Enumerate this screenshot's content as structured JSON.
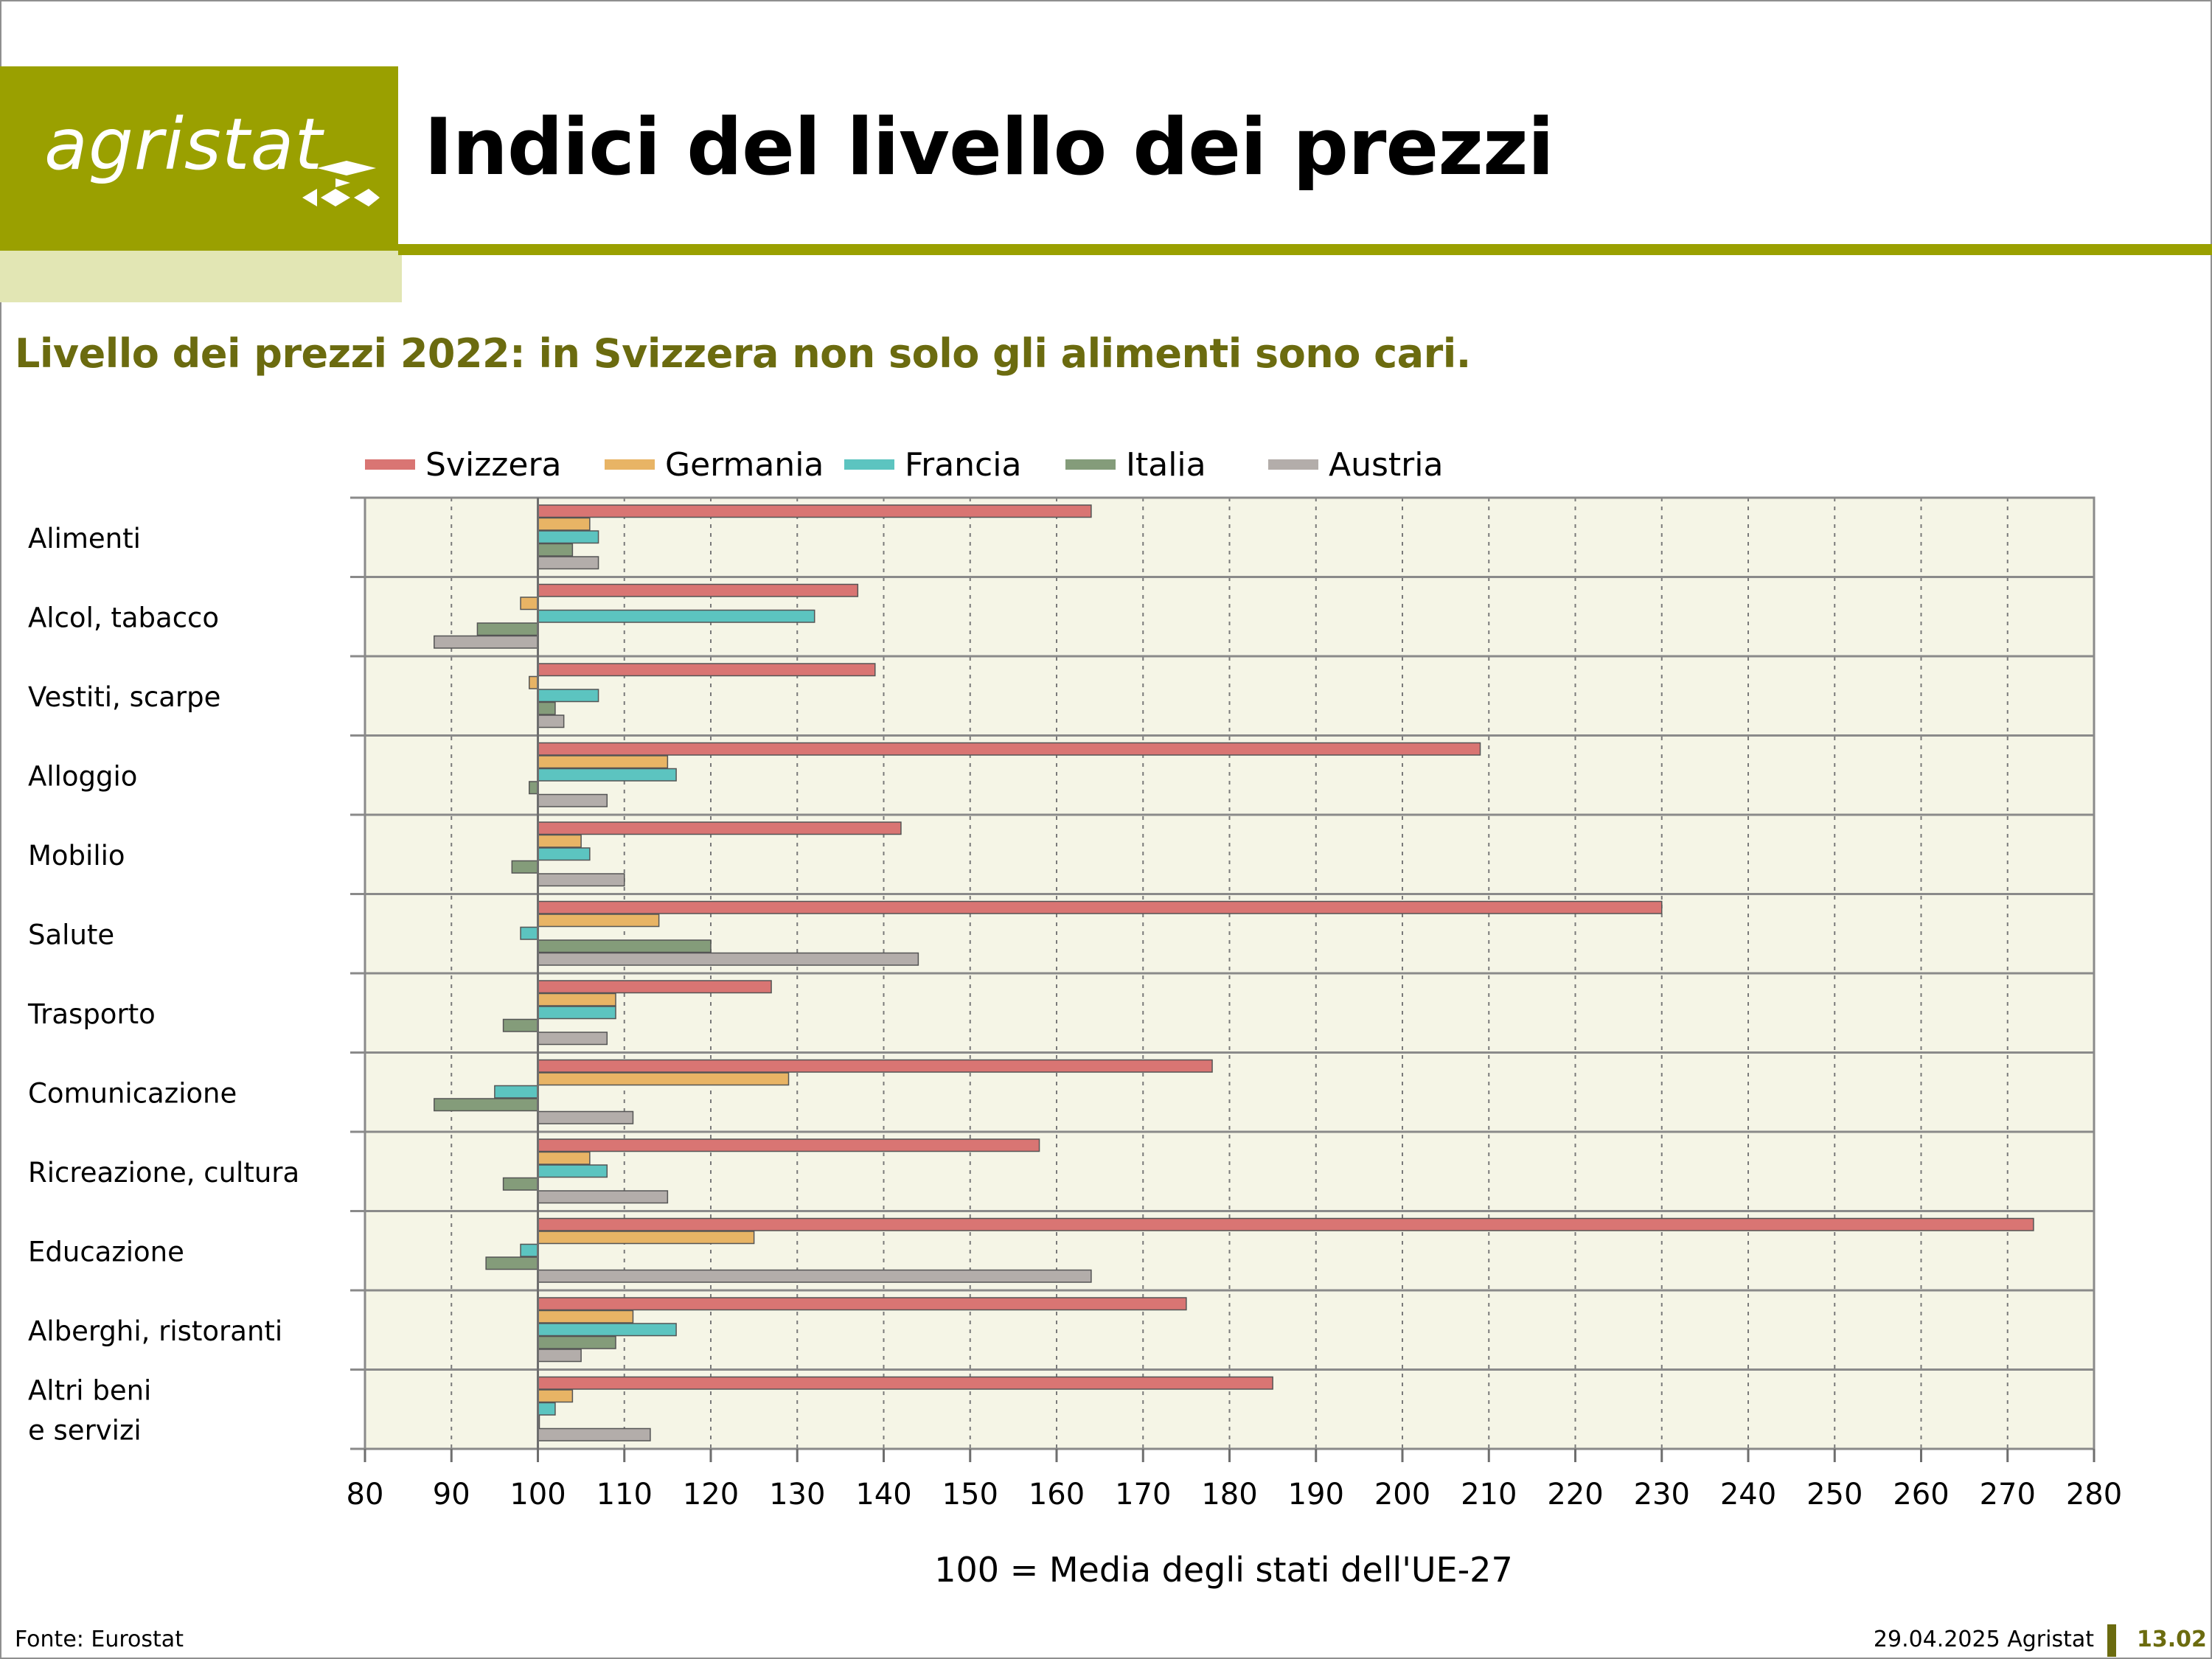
{
  "header": {
    "logo_text": "agristat",
    "title": "Indici del livello dei prezzi",
    "subtitle": "Livello dei prezzi 2022: in Svizzera non solo gli alimenti sono cari."
  },
  "footer": {
    "source": "Fonte: Eurostat",
    "date": "29.04.2025 Agristat",
    "page_number": "13.02"
  },
  "colors": {
    "brand": "#9aa000",
    "brand_light": "#e2e6b4",
    "brand_dark_text": "#6b6b0f",
    "plot_background": "#f5f5e6"
  },
  "chart_data": {
    "type": "bar",
    "orientation": "horizontal",
    "title": "",
    "xlabel": "100 = Media degli stati dell'UE-27",
    "ylabel": "",
    "xlim": [
      80,
      280
    ],
    "baseline": 100,
    "x_ticks": [
      80,
      90,
      100,
      110,
      120,
      130,
      140,
      150,
      160,
      170,
      180,
      190,
      200,
      210,
      220,
      230,
      240,
      250,
      260,
      270,
      280
    ],
    "grid": "vertical dotted",
    "legend_position": "top",
    "categories": [
      [
        "Alimenti"
      ],
      [
        "Alcol, tabacco"
      ],
      [
        "Vestiti, scarpe"
      ],
      [
        "Alloggio"
      ],
      [
        "Mobilio"
      ],
      [
        "Salute"
      ],
      [
        "Trasporto"
      ],
      [
        "Comunicazione"
      ],
      [
        "Ricreazione, cultura"
      ],
      [
        "Educazione"
      ],
      [
        "Alberghi, ristoranti"
      ],
      [
        "Altri beni",
        "e servizi"
      ]
    ],
    "series": [
      {
        "name": "Svizzera",
        "color": "#d97573",
        "values": [
          164,
          137,
          139,
          209,
          142,
          230,
          127,
          178,
          158,
          273,
          175,
          185
        ]
      },
      {
        "name": "Germania",
        "color": "#e8b465",
        "values": [
          106,
          98,
          99,
          115,
          105,
          114,
          109,
          129,
          106,
          125,
          111,
          104
        ]
      },
      {
        "name": "Francia",
        "color": "#5cc4c0",
        "values": [
          107,
          132,
          107,
          116,
          106,
          98,
          109,
          95,
          108,
          98,
          116,
          102
        ]
      },
      {
        "name": "Italia",
        "color": "#849c7a",
        "values": [
          104,
          93,
          102,
          99,
          97,
          120,
          96,
          88,
          96,
          94,
          109,
          100
        ]
      },
      {
        "name": "Austria",
        "color": "#b3adaa",
        "values": [
          107,
          88,
          103,
          108,
          110,
          144,
          108,
          111,
          115,
          164,
          105,
          113
        ]
      }
    ]
  }
}
